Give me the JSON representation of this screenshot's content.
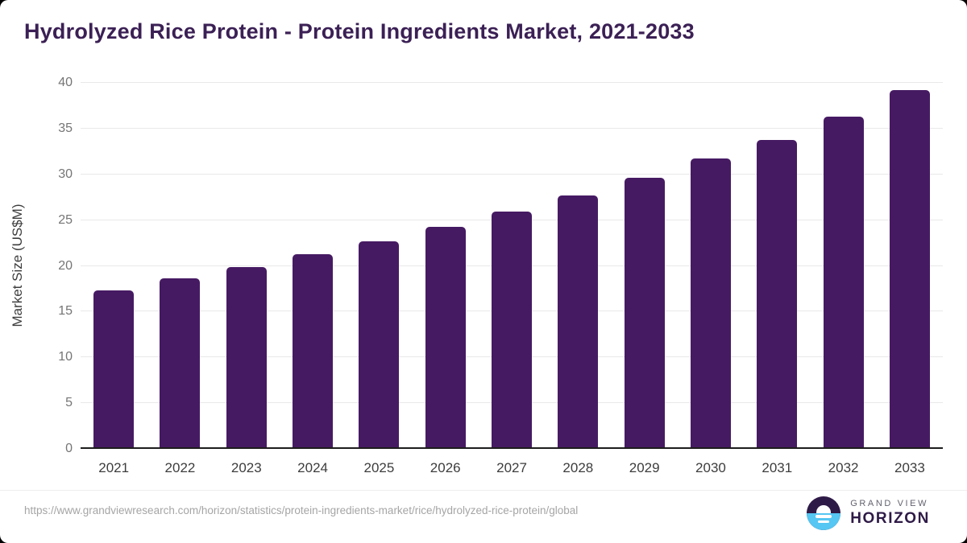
{
  "page": {
    "title": "Hydrolyzed Rice Protein - Protein Ingredients Market, 2021-2033",
    "source_url": "https://www.grandviewresearch.com/horizon/statistics/protein-ingredients-market/rice/hydrolyzed-rice-protein/global",
    "brand": {
      "line1": "GRAND VIEW",
      "line2": "HORIZON"
    }
  },
  "chart_data": {
    "type": "bar",
    "title": "Hydrolyzed Rice Protein - Protein Ingredients Market, 2021-2033",
    "categories": [
      "2021",
      "2022",
      "2023",
      "2024",
      "2025",
      "2026",
      "2027",
      "2028",
      "2029",
      "2030",
      "2031",
      "2032",
      "2033"
    ],
    "values": [
      17.3,
      18.6,
      19.9,
      21.3,
      22.7,
      24.3,
      25.9,
      27.7,
      29.6,
      31.7,
      33.8,
      36.3,
      39.2
    ],
    "xlabel": "",
    "ylabel": "Market Size (US$M)",
    "ylim": [
      0,
      40
    ],
    "yticks": [
      0,
      5,
      10,
      15,
      20,
      25,
      30,
      35,
      40
    ],
    "grid": "horizontal",
    "legend_position": "none"
  },
  "colors": {
    "bar": "#461a63",
    "title": "#3b2055",
    "grid": "#e9e9e9",
    "axis_line": "#1d1d1d",
    "y_tick_label": "#757575",
    "x_tick_label": "#3d3d3d",
    "url_text": "#a5a5a5",
    "logo_purple": "#2e1a47",
    "logo_blue": "#56c6f2",
    "logo_gray": "#62626e"
  }
}
